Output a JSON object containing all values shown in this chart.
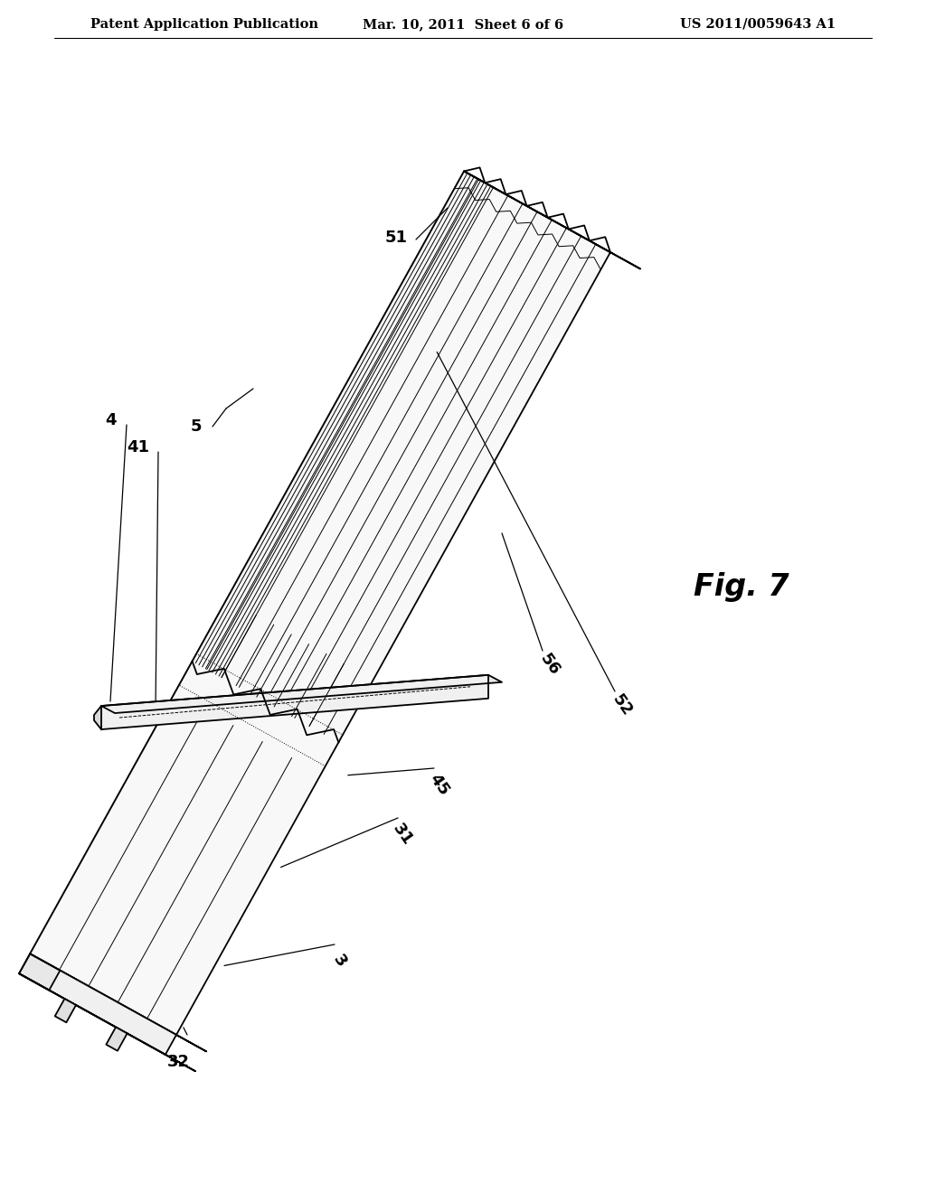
{
  "background_color": "#ffffff",
  "line_color": "#000000",
  "header_left": "Patent Application Publication",
  "header_center": "Mar. 10, 2011  Sheet 6 of 6",
  "header_right": "US 2011/0059643 A1",
  "fig_label": "Fig. 7",
  "header_fontsize": 10.5,
  "fig_label_fontsize": 24,
  "label_fontsize": 13
}
